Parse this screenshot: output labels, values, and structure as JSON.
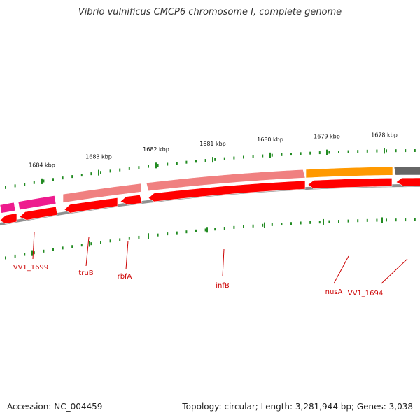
{
  "title": "Vibrio vulnificus CMCP6 chromosome I, complete genome",
  "accession": "Accession: NC_004459",
  "summary": "Topology: circular; Length: 3,281,944 bp; Genes: 3,038",
  "colors": {
    "backbone": "#8f8f8f",
    "cds_top": "#ff0000",
    "cds_bottom_light": "#f08080",
    "cds_magenta": "#ee1c8e",
    "cds_orange": "#ff9900",
    "cds_gray": "#666666",
    "tick": "#228b22",
    "label_line": "#cc0000"
  },
  "ticks": [
    {
      "label": "1684 kbp",
      "pos": 1684000
    },
    {
      "label": "1683 kbp",
      "pos": 1683000
    },
    {
      "label": "1682 kbp",
      "pos": 1682000
    },
    {
      "label": "1681 kbp",
      "pos": 1681000
    },
    {
      "label": "1680 kbp",
      "pos": 1680000
    },
    {
      "label": "1679 kbp",
      "pos": 1679000
    },
    {
      "label": "1678 kbp",
      "pos": 1678000
    }
  ],
  "genes": [
    {
      "label": "VV1_1699"
    },
    {
      "label": "truB"
    },
    {
      "label": "rbfA"
    },
    {
      "label": "infB"
    },
    {
      "label": "nusA"
    },
    {
      "label": "VV1_1694"
    }
  ]
}
